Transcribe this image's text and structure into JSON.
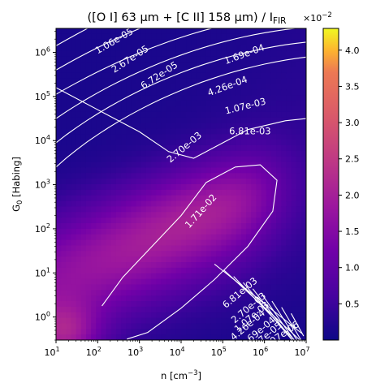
{
  "chart_data": {
    "type": "heatmap",
    "title": "([O I] 63 μm + [C II] 158 μm) / I",
    "title_subscript": "FIR",
    "xlabel": "n [cm",
    "xlabel_exponent": "−3",
    "xlabel_close": "]",
    "ylabel": "G",
    "ylabel_subscript": "0",
    "ylabel_rest": " [Habing]",
    "x_scale": "log",
    "y_scale": "log",
    "xlim": [
      10,
      10000000
    ],
    "ylim": [
      0.3,
      3500000
    ],
    "x_ticks": [
      {
        "value": 10,
        "base": "10",
        "exp": "1"
      },
      {
        "value": 100,
        "base": "10",
        "exp": "2"
      },
      {
        "value": 1000,
        "base": "10",
        "exp": "3"
      },
      {
        "value": 10000,
        "base": "10",
        "exp": "4"
      },
      {
        "value": 100000,
        "base": "10",
        "exp": "5"
      },
      {
        "value": 1000000,
        "base": "10",
        "exp": "6"
      },
      {
        "value": 10000000,
        "base": "10",
        "exp": "7"
      }
    ],
    "y_ticks": [
      {
        "value": 1,
        "base": "10",
        "exp": "0"
      },
      {
        "value": 10,
        "base": "10",
        "exp": "1"
      },
      {
        "value": 100,
        "base": "10",
        "exp": "2"
      },
      {
        "value": 1000,
        "base": "10",
        "exp": "3"
      },
      {
        "value": 10000,
        "base": "10",
        "exp": "4"
      },
      {
        "value": 100000,
        "base": "10",
        "exp": "5"
      },
      {
        "value": 1000000,
        "base": "10",
        "exp": "6"
      }
    ],
    "colormap": "plasma",
    "colorbar": {
      "min": 0.0,
      "max": 4.3,
      "multiplier_base": "×10",
      "multiplier_exp": "−2",
      "ticks": [
        "0.5",
        "1.0",
        "1.5",
        "2.0",
        "2.5",
        "3.0",
        "3.5",
        "4.0"
      ],
      "tick_values": [
        0.5,
        1.0,
        1.5,
        2.0,
        2.5,
        3.0,
        3.5,
        4.0
      ]
    },
    "contour_line_color": "#ffffff",
    "contour_labels": [
      {
        "text": "1.06e-05",
        "x": 250,
        "y": 1800000,
        "rotation": -30
      },
      {
        "text": "2.67e-05",
        "x": 600,
        "y": 700000,
        "rotation": -33
      },
      {
        "text": "6.72e-05",
        "x": 3000,
        "y": 300000,
        "rotation": -33
      },
      {
        "text": "1.69e-04",
        "x": 330000,
        "y": 900000,
        "rotation": -20
      },
      {
        "text": "4.26e-04",
        "x": 130000,
        "y": 170000,
        "rotation": -20
      },
      {
        "text": "1.07e-03",
        "x": 350000,
        "y": 60000,
        "rotation": -14
      },
      {
        "text": "6.81e-03",
        "x": 450000,
        "y": 16000,
        "rotation": 0
      },
      {
        "text": "2.70e-03",
        "x": 12000,
        "y": 7000,
        "rotation": -40
      },
      {
        "text": "1.71e-02",
        "x": 30000,
        "y": 250,
        "rotation": -48
      },
      {
        "text": "6.81e-03",
        "x": 260000,
        "y": 3.5,
        "rotation": -40
      },
      {
        "text": "2.70e-03",
        "x": 420000,
        "y": 1.6,
        "rotation": -40
      },
      {
        "text": "1.07e-03",
        "x": 500000,
        "y": 1.0,
        "rotation": -40
      },
      {
        "text": "4.26e-04",
        "x": 400000,
        "y": 0.65,
        "rotation": -40
      },
      {
        "text": "1.69e-04",
        "x": 700000,
        "y": 0.45,
        "rotation": -40
      },
      {
        "text": "2.67e-05",
        "x": 1000000,
        "y": 0.34,
        "rotation": -40
      },
      {
        "text": "1.07e-06",
        "x": 2500000,
        "y": 0.38,
        "rotation": -35
      }
    ]
  }
}
